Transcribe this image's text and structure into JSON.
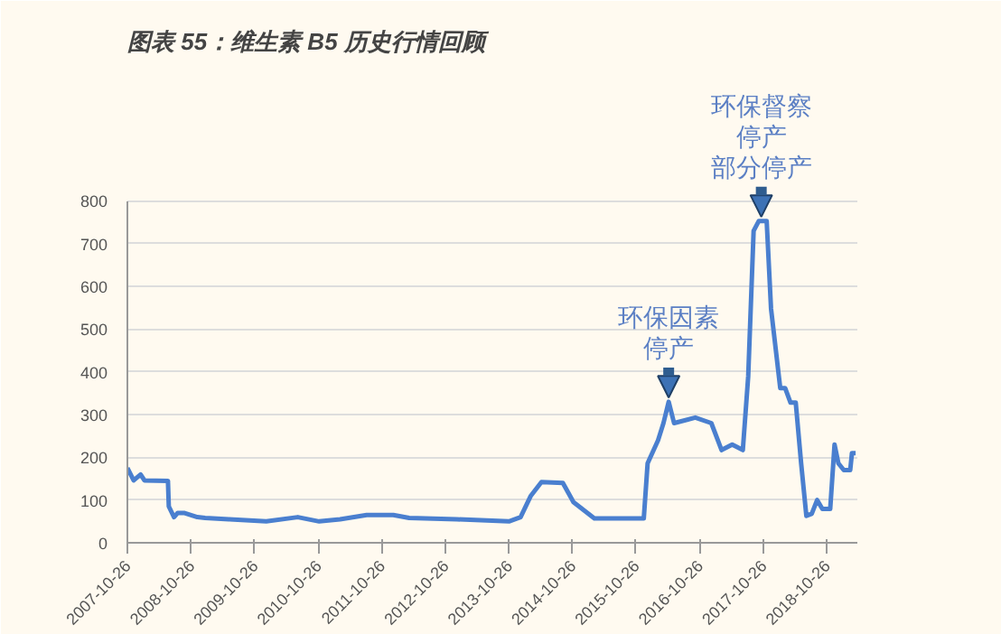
{
  "chart_data": {
    "type": "line",
    "title": "图表 55：维生素 B5 历史行情回顾",
    "x": [
      "2007-10-26",
      "2007-12-01",
      "2008-01-10",
      "2008-02-01",
      "2008-06-15",
      "2008-06-20",
      "2008-07-20",
      "2008-08-10",
      "2008-09-15",
      "2008-12-01",
      "2009-01-15",
      "2009-06-01",
      "2010-01-01",
      "2010-07-01",
      "2010-11-01",
      "2011-03-01",
      "2011-08-01",
      "2012-01-01",
      "2012-04-01",
      "2013-01-01",
      "2013-10-26",
      "2014-01-01",
      "2014-03-01",
      "2014-05-01",
      "2014-09-01",
      "2014-11-01",
      "2015-03-01",
      "2015-12-10",
      "2016-01-01",
      "2016-03-01",
      "2016-04-01",
      "2016-05-01",
      "2016-06-01",
      "2016-10-01",
      "2017-01-01",
      "2017-03-01",
      "2017-05-01",
      "2017-07-01",
      "2017-08-01",
      "2017-09-01",
      "2017-10-01",
      "2017-11-15",
      "2017-12-10",
      "2018-02-01",
      "2018-03-01",
      "2018-04-01",
      "2018-05-01",
      "2018-06-01",
      "2018-07-01",
      "2018-08-01",
      "2018-09-01",
      "2018-10-01",
      "2018-11-15",
      "2018-12-10",
      "2019-01-01",
      "2019-02-01",
      "2019-03-10",
      "2019-03-20",
      "2019-04-10"
    ],
    "series": [
      {
        "color": "#4a7fcf",
        "values": [
          175,
          146,
          160,
          146,
          145,
          85,
          60,
          70,
          70,
          60,
          58,
          55,
          50,
          60,
          50,
          55,
          65,
          65,
          58,
          55,
          50,
          60,
          110,
          142,
          140,
          95,
          57,
          57,
          186,
          240,
          280,
          330,
          280,
          293,
          280,
          217,
          230,
          217,
          390,
          730,
          753,
          753,
          548,
          362,
          362,
          328,
          328,
          186,
          63,
          68,
          100,
          79,
          79,
          230,
          186,
          170,
          170,
          210,
          210
        ]
      }
    ],
    "ylim": [
      0,
      800
    ],
    "yticks": [
      0,
      100,
      200,
      300,
      400,
      500,
      600,
      700,
      800
    ],
    "xlim": [
      "2007-10-26",
      "2019-04-20"
    ],
    "xticks": [
      "2007-10-26",
      "2008-10-26",
      "2009-10-26",
      "2010-10-26",
      "2011-10-26",
      "2012-10-26",
      "2013-10-26",
      "2014-10-26",
      "2015-10-26",
      "2016-10-26",
      "2017-10-26",
      "2018-10-26"
    ],
    "grid": "y",
    "marker": "none",
    "line_style": "solid",
    "annotations": [
      "环保因素",
      {
        "text": "停产",
        "x": "2016-05-01",
        "y": 330
      },
      "环保督察",
      "停产",
      {
        "text": "部分停产",
        "x": "2017-10-15",
        "y": 753
      }
    ]
  }
}
